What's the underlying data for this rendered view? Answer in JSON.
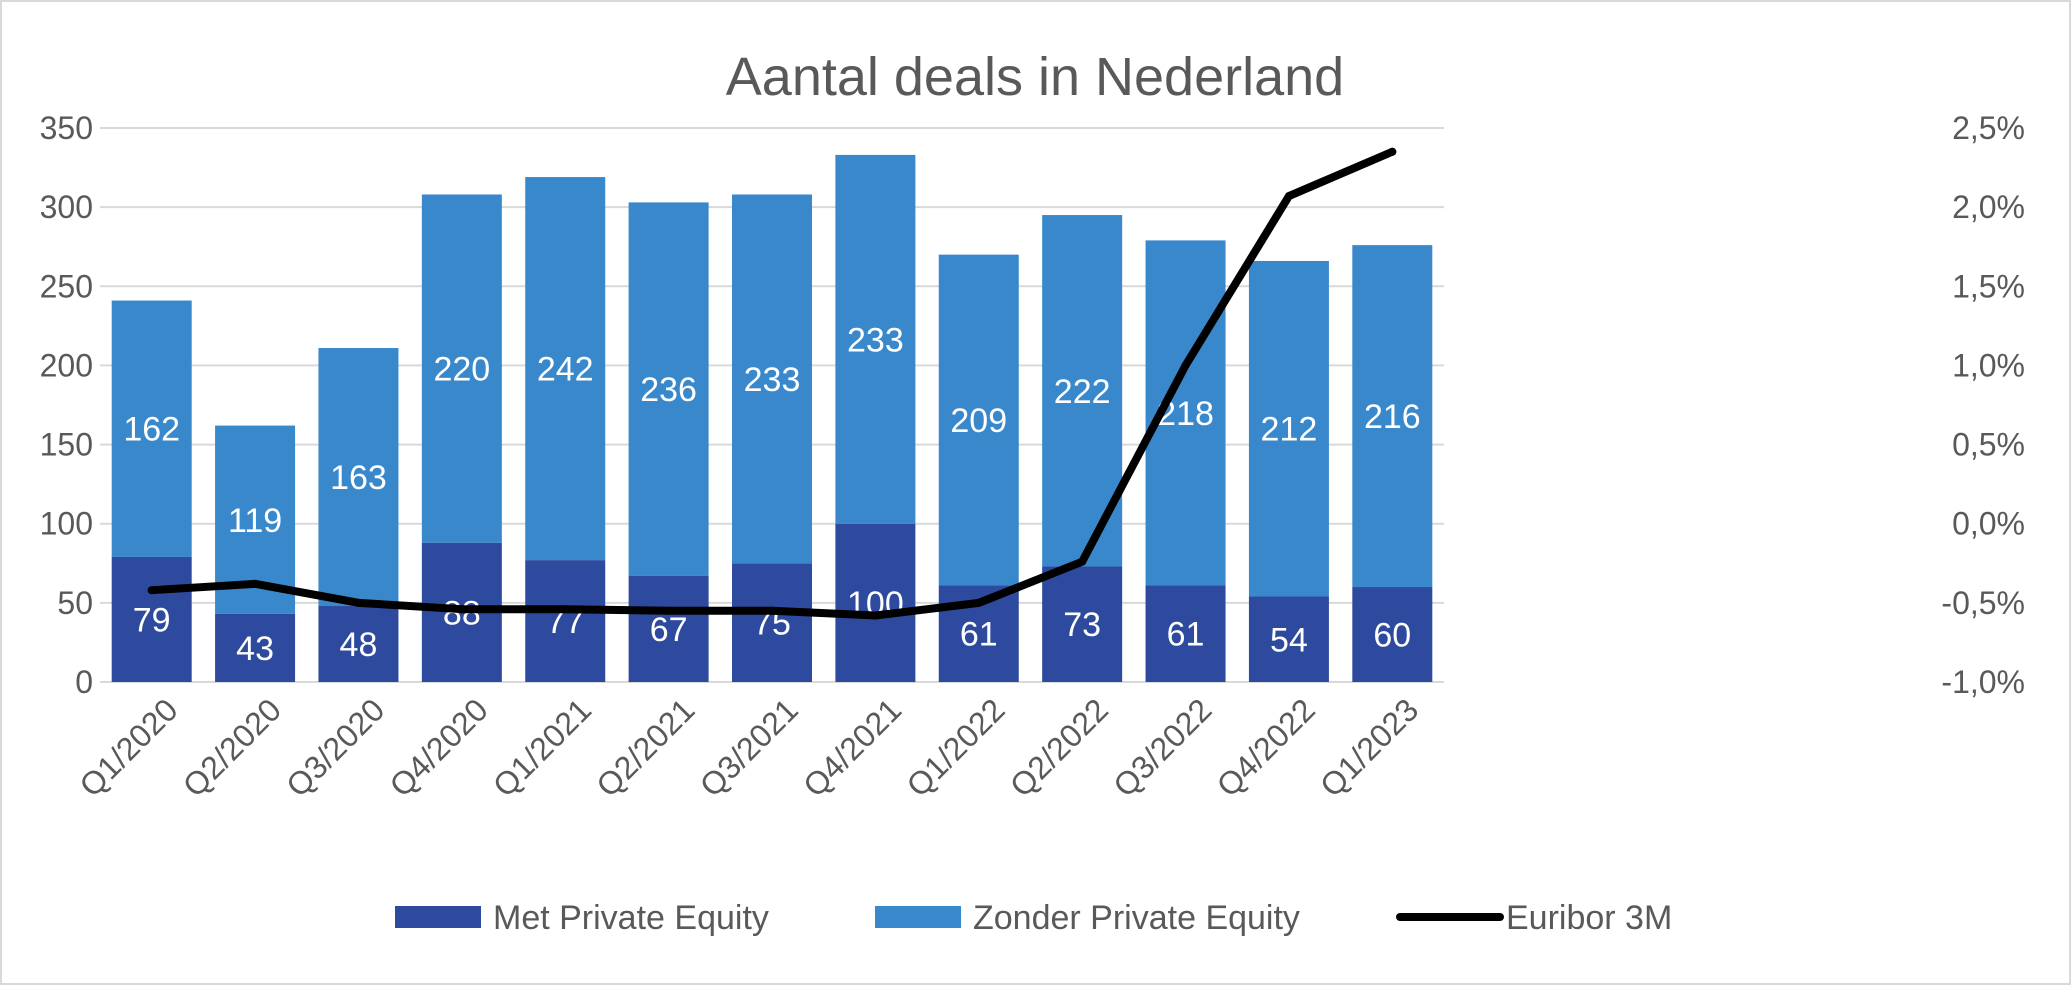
{
  "chart_data": {
    "type": "bar",
    "stacked": true,
    "title": "Aantal deals in Nederland",
    "categories": [
      "Q1/2020",
      "Q2/2020",
      "Q3/2020",
      "Q4/2020",
      "Q1/2021",
      "Q2/2021",
      "Q3/2021",
      "Q4/2021",
      "Q1/2022",
      "Q2/2022",
      "Q3/2022",
      "Q4/2022",
      "Q1/2023"
    ],
    "series": [
      {
        "name": "Met Private Equity",
        "kind": "bar",
        "axis": "left",
        "color": "#2e4a9e",
        "values": [
          79,
          43,
          48,
          88,
          77,
          67,
          75,
          100,
          61,
          73,
          61,
          54,
          60
        ]
      },
      {
        "name": "Zonder Private Equity",
        "kind": "bar",
        "axis": "left",
        "color": "#3a88cc",
        "values": [
          162,
          119,
          163,
          220,
          242,
          236,
          233,
          233,
          209,
          222,
          218,
          212,
          216
        ]
      },
      {
        "name": "Euribor 3M",
        "kind": "line",
        "axis": "right",
        "color": "#000000",
        "values": [
          -0.42,
          -0.38,
          -0.5,
          -0.54,
          -0.54,
          -0.55,
          -0.55,
          -0.58,
          -0.5,
          -0.24,
          1.0,
          2.07,
          2.35
        ]
      }
    ],
    "y_left": {
      "min": 0,
      "max": 350,
      "ticks": [
        "0",
        "50",
        "100",
        "150",
        "200",
        "250",
        "300",
        "350"
      ]
    },
    "y_right": {
      "min": -1.0,
      "max": 2.5,
      "ticks": [
        "-1,0%",
        "-0,5%",
        "0,0%",
        "0,5%",
        "1,0%",
        "1,5%",
        "2,0%",
        "2,5%"
      ]
    },
    "grid": true,
    "legend_position": "bottom"
  }
}
